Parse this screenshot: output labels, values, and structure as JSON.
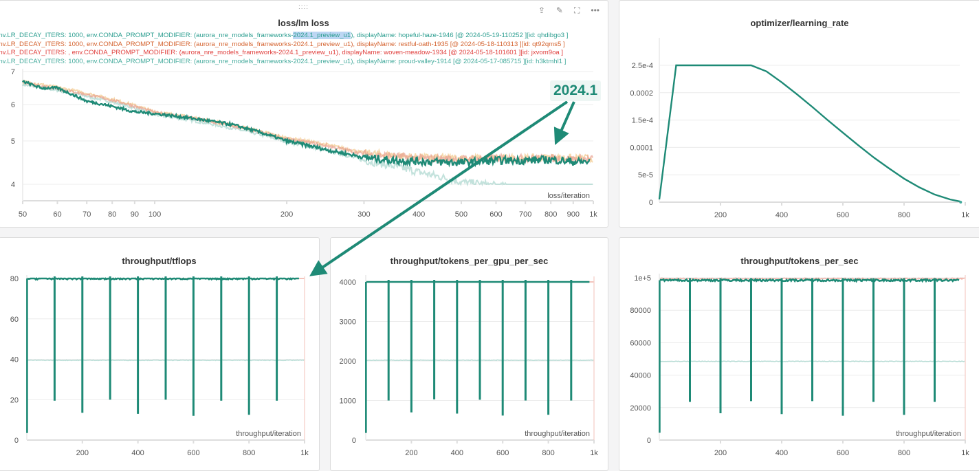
{
  "panels": {
    "loss": {
      "title": "loss/lm loss",
      "drag_handle": "::::"
    },
    "lr": {
      "title": "optimizer/learning_rate"
    },
    "tflops": {
      "title": "throughput/tflops"
    },
    "tpg": {
      "title": "throughput/tokens_per_gpu_per_sec"
    },
    "tps": {
      "title": "throughput/tokens_per_sec"
    }
  },
  "toolbar": {
    "export_icon": "share-icon",
    "edit_icon": "pencil-icon",
    "fullscreen_icon": "expand-icon",
    "more_icon": "more-icon"
  },
  "legend": [
    {
      "color": "#2a9d8f",
      "pre": "env.LR_DECAY_ITERS: 1000, env.CONDA_PROMPT_MODIFIER: (aurora_nre_models_frameworks-",
      "hl": "2024.1_preview_u1",
      "post": "), displayName: hopeful-haze-1946 [@ 2024-05-19-110252 ][id: qhdibgo3 ]"
    },
    {
      "color": "#d4622e",
      "pre": "env.LR_DECAY_ITERS: 1000, env.CONDA_PROMPT_MODIFIER: (aurora_nre_models_frameworks-2024.1_preview_u1), displayName: restful-oath-1935 [@ 2024-05-18-110313 ][id: qt92qms5 ]"
    },
    {
      "color": "#e0403e",
      "pre": "env.LR_DECAY_ITERS: , env.CONDA_PROMPT_MODIFIER: (aurora_nre_models_frameworks-2024.1_preview_u1), displayName: woven-meadow-1934 [@ 2024-05-18-101601 ][id: jxvom9oa ]"
    },
    {
      "color": "#45ab9d",
      "pre": "env.LR_DECAY_ITERS: 1000, env.CONDA_PROMPT_MODIFIER: (aurora_nre_models_frameworks-2024.1_preview_u1), displayName: proud-valley-1914 [@ 2024-05-17-085715 ][id: h3ktmhl1 ]"
    }
  ],
  "annotation": {
    "text": "2024.1",
    "color": "#1e8a76"
  },
  "chart_data": [
    {
      "id": "loss",
      "type": "line",
      "title": "loss/lm loss",
      "xlabel": "loss/iteration",
      "xscale": "log",
      "xticks": [
        "50",
        "60",
        "70",
        "80",
        "90",
        "100",
        "200",
        "300",
        "400",
        "500",
        "600",
        "700",
        "800",
        "900",
        "1k"
      ],
      "yticks": [
        "7",
        "6",
        "5",
        "4"
      ],
      "series": [
        {
          "name": "hopeful-haze-1946",
          "color": "#1e8a76",
          "x": [
            50,
            55,
            60,
            65,
            70,
            80,
            90,
            100,
            150,
            200,
            250,
            300,
            350,
            400,
            500,
            600,
            700,
            800,
            900,
            980
          ],
          "y": [
            6.7,
            6.5,
            6.5,
            6.3,
            6.1,
            5.95,
            5.8,
            5.75,
            5.45,
            5.0,
            4.78,
            4.62,
            4.55,
            4.53,
            4.5,
            4.55,
            4.55,
            4.57,
            4.52,
            4.52
          ]
        },
        {
          "name": "restful-oath-1935",
          "color": "#e8a090",
          "x": [
            50,
            100,
            200,
            300,
            400,
            500,
            600,
            700,
            800,
            900,
            1000
          ],
          "y": [
            6.65,
            5.78,
            5.05,
            4.7,
            4.6,
            4.58,
            4.6,
            4.6,
            4.6,
            4.58,
            4.58
          ]
        },
        {
          "name": "woven-meadow-1934",
          "color": "#f2c98a",
          "x": [
            50,
            100,
            200,
            300,
            400,
            500,
            600,
            700,
            800,
            900,
            1000
          ],
          "y": [
            6.7,
            5.8,
            5.08,
            4.72,
            4.62,
            4.6,
            4.6,
            4.6,
            4.62,
            4.6,
            4.6
          ]
        },
        {
          "name": "proud-valley-1914",
          "color": "#a9d6cd",
          "x": [
            50,
            100,
            200,
            300,
            350,
            400,
            500,
            600,
            700,
            800,
            900,
            1000
          ],
          "y": [
            6.6,
            5.72,
            4.98,
            4.55,
            4.42,
            4.28,
            4.05,
            3.97,
            3.9,
            3.82,
            3.78,
            3.75
          ]
        }
      ]
    },
    {
      "id": "lr",
      "type": "line",
      "title": "optimizer/learning_rate",
      "xlabel": "",
      "xlim": [
        0,
        1000
      ],
      "xticks": [
        "200",
        "400",
        "600",
        "800",
        "1k"
      ],
      "yticks": [
        "2.5e-4",
        "0.0002",
        "1.5e-4",
        "0.0001",
        "5e-5",
        "0"
      ],
      "series": [
        {
          "name": "learning_rate",
          "color": "#1e8a76",
          "x": [
            0,
            55,
            100,
            150,
            200,
            250,
            300,
            350,
            400,
            450,
            500,
            550,
            600,
            650,
            700,
            750,
            800,
            850,
            900,
            950,
            985
          ],
          "y": [
            5e-06,
            0.0003,
            0.000298,
            0.000293,
            0.000284,
            0.000272,
            0.000257,
            0.000239,
            0.000219,
            0.000197,
            0.000174,
            0.00015,
            0.000127,
            0.000104,
            8.2e-05,
            6.2e-05,
            4.3e-05,
            2.7e-05,
            1.4e-05,
            5e-06,
            1e-06
          ]
        }
      ]
    },
    {
      "id": "tflops",
      "type": "line",
      "title": "throughput/tflops",
      "xlabel": "throughput/iteration",
      "xlim": [
        0,
        1000
      ],
      "xticks": [
        "200",
        "400",
        "600",
        "800",
        "1k"
      ],
      "yticks": [
        "80",
        "60",
        "40",
        "20",
        "0"
      ],
      "series": [
        {
          "name": "hopeful-haze-1946",
          "color": "#1e8a76",
          "level": 80,
          "end": 980,
          "start_value": 3.5,
          "dips": [
            [
              100,
              19.5
            ],
            [
              200,
              13.5
            ],
            [
              300,
              20
            ],
            [
              400,
              13
            ],
            [
              500,
              20
            ],
            [
              600,
              12
            ],
            [
              700,
              19.5
            ],
            [
              800,
              12.5
            ],
            [
              900,
              19.5
            ]
          ]
        },
        {
          "name": "proud-valley-1914",
          "color": "#b9ddd6",
          "level": 39.5,
          "end": 1000
        },
        {
          "name": "restful-oath-1935",
          "color": "#f0b1a6",
          "level": 81,
          "end": 1000
        }
      ]
    },
    {
      "id": "tpg",
      "type": "line",
      "title": "throughput/tokens_per_gpu_per_sec",
      "xlabel": "throughput/iteration",
      "xlim": [
        0,
        1000
      ],
      "xticks": [
        "200",
        "400",
        "600",
        "800",
        "1k"
      ],
      "yticks": [
        "4000",
        "3000",
        "2000",
        "1000",
        "0"
      ],
      "series": [
        {
          "name": "hopeful-haze-1946",
          "color": "#1e8a76",
          "level": 4100,
          "end": 980,
          "start_value": 180,
          "dips": [
            [
              100,
              1000
            ],
            [
              200,
              700
            ],
            [
              300,
              1030
            ],
            [
              400,
              670
            ],
            [
              500,
              1020
            ],
            [
              600,
              620
            ],
            [
              700,
              1000
            ],
            [
              800,
              640
            ],
            [
              900,
              1000
            ]
          ]
        },
        {
          "name": "proud-valley-1914",
          "color": "#b9ddd6",
          "level": 2020,
          "end": 1000
        },
        {
          "name": "restful-oath-1935",
          "color": "#f0b1a6",
          "level": 4150,
          "end": 1000
        }
      ]
    },
    {
      "id": "tps",
      "type": "line",
      "title": "throughput/tokens_per_sec",
      "xlabel": "throughput/iteration",
      "xlim": [
        0,
        1000
      ],
      "xticks": [
        "200",
        "400",
        "600",
        "800",
        "1k"
      ],
      "yticks": [
        "1e+5",
        "80000",
        "60000",
        "40000",
        "20000",
        "0"
      ],
      "series": [
        {
          "name": "hopeful-haze-1946",
          "color": "#1e8a76",
          "level": 98500,
          "end": 980,
          "start_value": 4500,
          "dips": [
            [
              100,
              23500
            ],
            [
              200,
              16500
            ],
            [
              300,
              24000
            ],
            [
              400,
              16000
            ],
            [
              500,
              24000
            ],
            [
              600,
              15000
            ],
            [
              700,
              23500
            ],
            [
              800,
              15500
            ],
            [
              900,
              23500
            ]
          ]
        },
        {
          "name": "proud-valley-1914",
          "color": "#b9ddd6",
          "level": 48500,
          "end": 1000
        },
        {
          "name": "restful-oath-1935",
          "color": "#f0b1a6",
          "level": 99500,
          "end": 1000
        }
      ]
    }
  ]
}
